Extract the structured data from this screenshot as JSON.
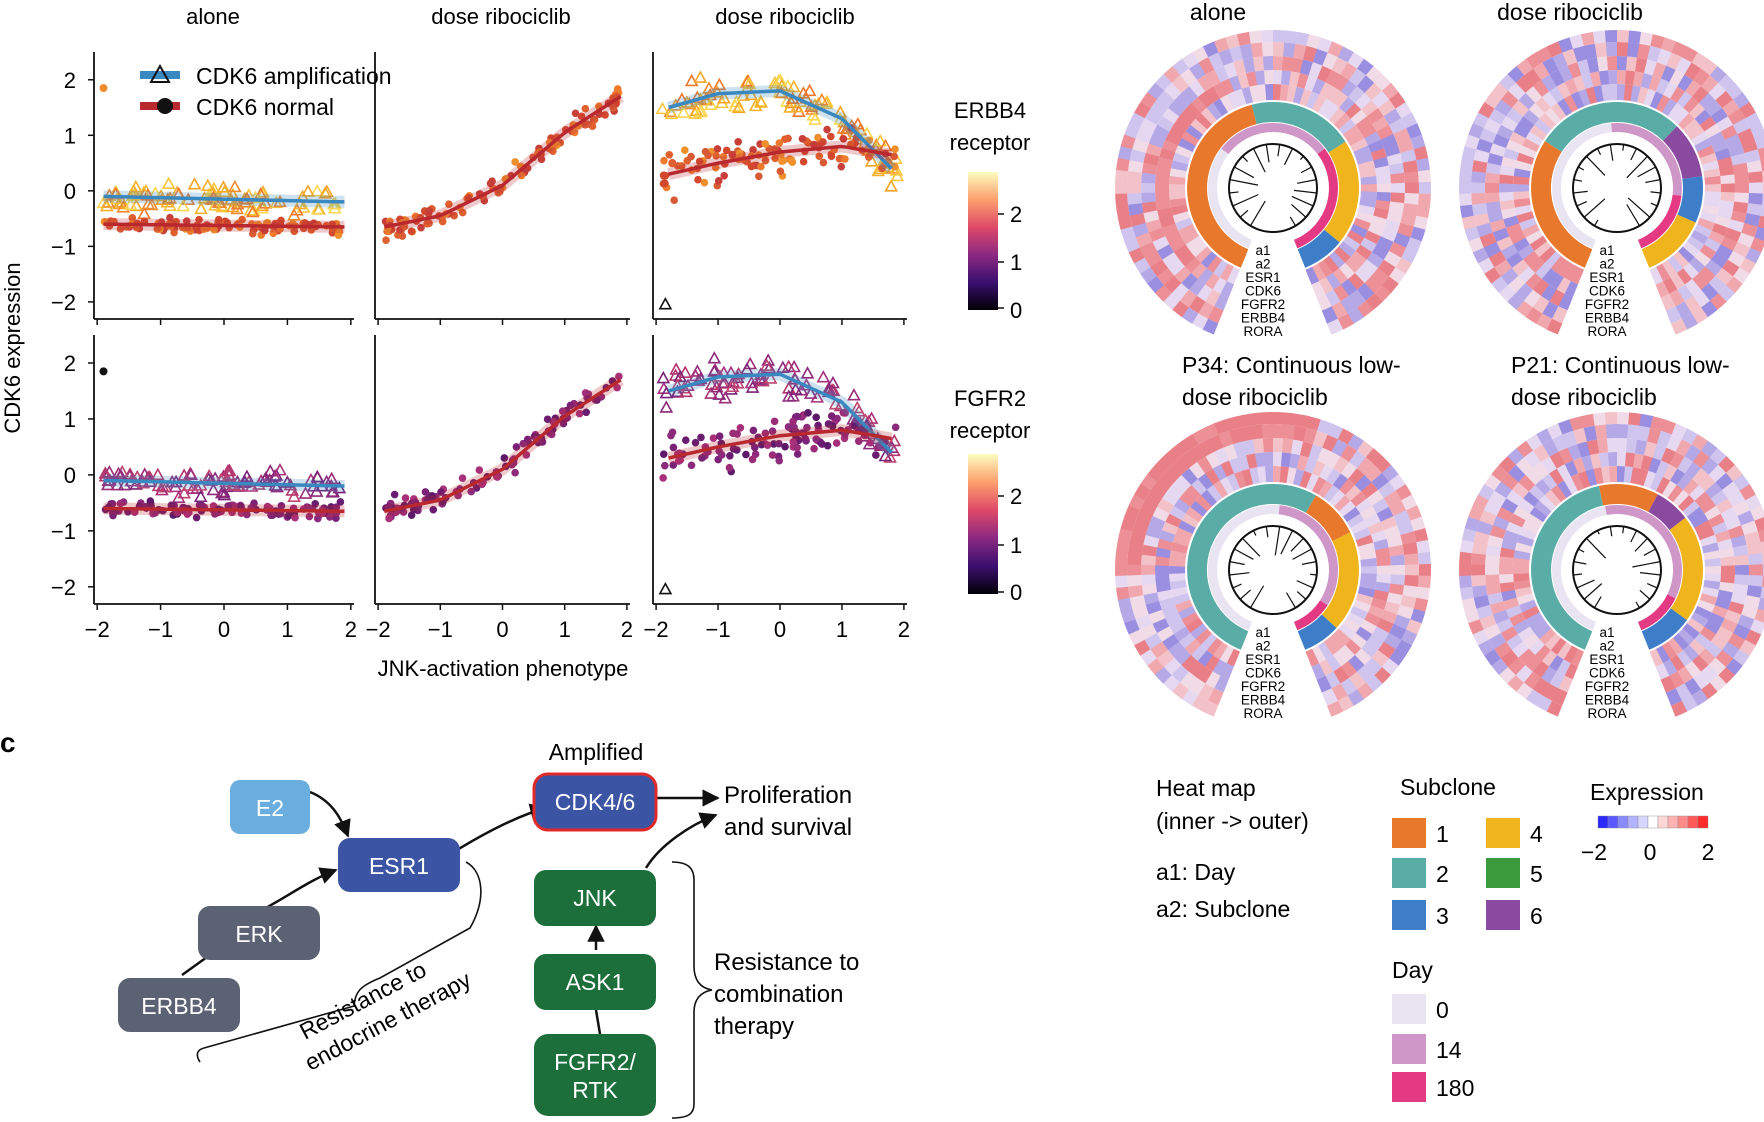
{
  "panel_c_label": "c",
  "scatter": {
    "column_titles": [
      "alone",
      "dose ribociclib",
      "dose ribociclib"
    ],
    "ylabel": "CDK6 expression",
    "xlabel": "JNK-activation phenotype",
    "x_ticks": [
      "−2",
      "−1",
      "0",
      "1",
      "2"
    ],
    "y_ticks": [
      "−2",
      "−1",
      "0",
      "1",
      "2"
    ],
    "legend": [
      "CDK6 amplification",
      "CDK6 normal"
    ],
    "colorbars": [
      {
        "title_line1": "ERBB4",
        "title_line2": "receptor",
        "ticks": [
          "2",
          "1",
          "0"
        ]
      },
      {
        "title_line1": "FGFR2",
        "title_line2": "receptor",
        "ticks": [
          "2",
          "1",
          "0"
        ]
      }
    ]
  },
  "chart_data": [
    {
      "type": "scatter",
      "title": "alone",
      "xlabel": "JNK-activation phenotype",
      "ylabel": "CDK6 expression",
      "xlim": [
        -2,
        2
      ],
      "ylim": [
        -2.2,
        2.5
      ],
      "color_by": [
        "ERBB4 receptor",
        "FGFR2 receptor"
      ],
      "series": [
        {
          "name": "CDK6 amplification",
          "fit": {
            "type": "linear",
            "x": [
              -1.9,
              1.9
            ],
            "y": [
              -0.1,
              -0.2
            ]
          }
        },
        {
          "name": "CDK6 normal",
          "fit": {
            "type": "linear",
            "x": [
              -1.9,
              1.9
            ],
            "y": [
              -0.6,
              -0.65
            ]
          }
        }
      ]
    },
    {
      "type": "scatter",
      "title": "dose ribociclib",
      "xlabel": "JNK-activation phenotype",
      "ylabel": "CDK6 expression",
      "xlim": [
        -2,
        2
      ],
      "ylim": [
        -2.2,
        2.5
      ],
      "series": [
        {
          "name": "CDK6 normal",
          "fit": {
            "type": "curve",
            "x": [
              -1.9,
              -1,
              0,
              1,
              1.9
            ],
            "y": [
              -0.65,
              -0.45,
              0.1,
              1.05,
              1.7
            ]
          }
        }
      ]
    },
    {
      "type": "scatter",
      "title": "dose ribociclib",
      "xlabel": "JNK-activation phenotype",
      "ylabel": "CDK6 expression",
      "xlim": [
        -2,
        2
      ],
      "ylim": [
        -2.2,
        2.5
      ],
      "series": [
        {
          "name": "CDK6 amplification",
          "fit": {
            "type": "curve",
            "x": [
              -1.8,
              -1,
              0,
              1,
              1.8
            ],
            "y": [
              1.5,
              1.75,
              1.8,
              1.3,
              0.4
            ]
          }
        },
        {
          "name": "CDK6 normal",
          "fit": {
            "type": "curve",
            "x": [
              -1.8,
              -1,
              0,
              1,
              1.8
            ],
            "y": [
              0.3,
              0.5,
              0.7,
              0.8,
              0.65
            ]
          }
        }
      ]
    }
  ],
  "circular_heatmaps": {
    "titles": [
      "alone",
      "dose ribociclib",
      "P34: Continuous low-",
      "dose ribociclib",
      "P21: Continuous low-",
      "dose ribociclib"
    ],
    "track_labels": [
      "a1",
      "a2",
      "ESR1",
      "CDK6",
      "FGFR2",
      "ERBB4",
      "RORA"
    ]
  },
  "legend_panel": {
    "heatmap_title_1": "Heat map",
    "heatmap_title_2": "(inner -> outer)",
    "a1": "a1: Day",
    "a2": "a2: Subclone",
    "subclone_title": "Subclone",
    "subclones": [
      {
        "label": "1",
        "color": "#e8782c"
      },
      {
        "label": "2",
        "color": "#5aaca6"
      },
      {
        "label": "3",
        "color": "#3e7dc7"
      },
      {
        "label": "4",
        "color": "#f0b41c"
      },
      {
        "label": "5",
        "color": "#3a9a3c"
      },
      {
        "label": "6",
        "color": "#8a4aa0"
      }
    ],
    "day_title": "Day",
    "days": [
      {
        "label": "0",
        "color": "#e8e4f2"
      },
      {
        "label": "14",
        "color": "#cf96c8"
      },
      {
        "label": "180",
        "color": "#e43a84"
      }
    ],
    "expression_title": "Expression",
    "expression_ticks": [
      "−2",
      "0",
      "2"
    ]
  },
  "pathway": {
    "amplified_label": "Amplified",
    "nodes": {
      "e2": "E2",
      "esr1": "ESR1",
      "erk": "ERK",
      "erbb4": "ERBB4",
      "cdk46": "CDK4/6",
      "jnk": "JNK",
      "ask1": "ASK1",
      "fgfr2_l1": "FGFR2/",
      "fgfr2_l2": "RTK"
    },
    "outcome_l1": "Proliferation",
    "outcome_l2": "and survival",
    "endocrine_l1": "Resistance to",
    "endocrine_l2": "endocrine therapy",
    "combo_l1": "Resistance to",
    "combo_l2": "combination",
    "combo_l3": "therapy"
  },
  "colors": {
    "amplification_fit": "#3a88c0",
    "normal_fit": "#b8282e",
    "amplified_border": "#e02a2a",
    "node_light_blue": "#6aaee0",
    "node_blue": "#3b55a4",
    "node_slate": "#5a6273",
    "node_green": "#1c6e3a"
  }
}
